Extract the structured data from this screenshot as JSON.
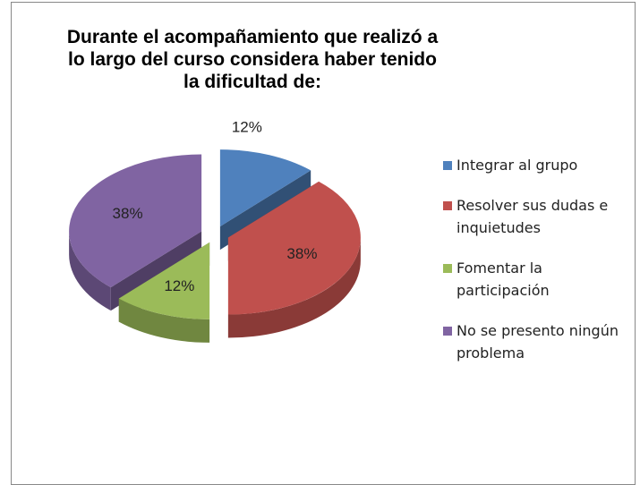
{
  "chart_data": {
    "type": "pie",
    "title": [
      "Durante el acompañamiento que realizó a",
      "lo largo  del curso considera haber tenido",
      "la dificultad de:"
    ],
    "categories": [
      "Integrar al grupo",
      "Resolver sus dudas e inquietudes",
      "Fomentar la participación",
      "No se presento ningún problema"
    ],
    "values": [
      12,
      38,
      12,
      38
    ],
    "value_labels": [
      "12%",
      "38%",
      "12%",
      "38%"
    ],
    "colors": [
      "#4f81bd",
      "#c0504d",
      "#9bbb59",
      "#8064a2"
    ],
    "legend": "right"
  }
}
